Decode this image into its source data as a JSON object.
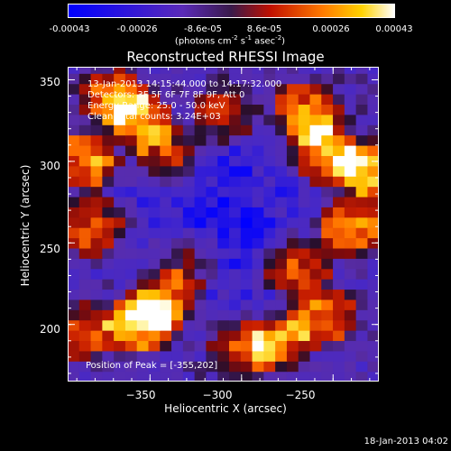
{
  "colorbar": {
    "ticks": [
      "-0.00043",
      "-0.00026",
      "-8.6e-05",
      "8.6e-05",
      "0.00026",
      "0.00043"
    ],
    "units_text": "(photons cm",
    "units_exp1": "-2",
    "units_mid": " s",
    "units_exp2": "-1",
    "units_end": " asec",
    "units_exp3": "-2",
    "units_close": ")"
  },
  "chart_data": {
    "type": "heatmap",
    "title": "Reconstructed RHESSI Image",
    "xlabel": "Heliocentric X (arcsec)",
    "ylabel": "Heliocentric Y (arcsec)",
    "xlim": [
      -395,
      -258
    ],
    "ylim": [
      168,
      360
    ],
    "x_ticks": [
      -350,
      -300,
      -250
    ],
    "y_ticks": [
      200,
      250,
      300,
      350
    ],
    "x_tick_labels": [
      "−350",
      "−300",
      "−250"
    ],
    "y_tick_labels": [
      "200",
      "250",
      "300",
      "350"
    ],
    "value_range": [
      -0.00043,
      0.00043
    ],
    "colormap": "rhessi-blue-purple-red-yellow-white",
    "peak": [
      -355,
      202
    ],
    "bright_sources": [
      {
        "x": -355,
        "y": 202,
        "v": 1.0
      },
      {
        "x": -340,
        "y": 215,
        "v": 0.7
      },
      {
        "x": -370,
        "y": 340,
        "v": 0.75
      },
      {
        "x": -355,
        "y": 325,
        "v": 0.7
      },
      {
        "x": -385,
        "y": 300,
        "v": 0.8
      },
      {
        "x": -380,
        "y": 260,
        "v": 0.7
      },
      {
        "x": -340,
        "y": 305,
        "v": 0.65
      },
      {
        "x": -310,
        "y": 330,
        "v": 0.6
      },
      {
        "x": -265,
        "y": 330,
        "v": 0.8
      },
      {
        "x": -255,
        "y": 305,
        "v": 0.85
      },
      {
        "x": -230,
        "y": 295,
        "v": 0.9
      },
      {
        "x": -240,
        "y": 260,
        "v": 0.8
      },
      {
        "x": -270,
        "y": 235,
        "v": 0.7
      },
      {
        "x": -255,
        "y": 205,
        "v": 0.75
      },
      {
        "x": -280,
        "y": 190,
        "v": 0.7
      },
      {
        "x": -330,
        "y": 240,
        "v": 0.55
      },
      {
        "x": -300,
        "y": 185,
        "v": 0.55
      },
      {
        "x": -385,
        "y": 195,
        "v": 0.6
      }
    ]
  },
  "info": {
    "line1": "13-Jan-2013 14:15:44.000 to 14:17:32.000",
    "line2": "Detectors: 3F 5F 6F 7F 8F 9F, Att 0",
    "line3": "Energy Range: 25.0 - 50.0 keV",
    "line4": "Clean      Total counts: 3.24E+03",
    "peak_text": "Position of Peak = [-355,202]"
  },
  "footer": {
    "timestamp": "18-Jan-2013 04:02"
  }
}
